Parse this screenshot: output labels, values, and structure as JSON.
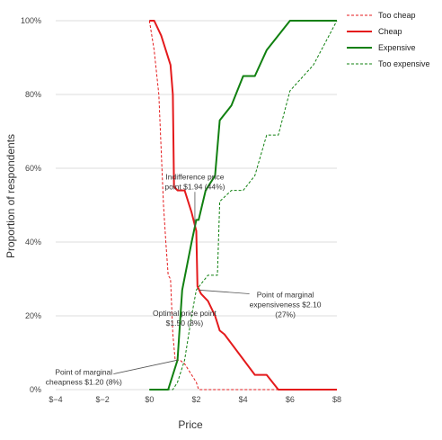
{
  "chart_data": {
    "type": "line",
    "xlabel": "Price",
    "ylabel": "Proportion of respondents",
    "xlim": [
      -4,
      8
    ],
    "ylim": [
      0,
      100
    ],
    "x_ticks": [
      "$−4",
      "$−2",
      "$0",
      "$2",
      "$4",
      "$6",
      "$8"
    ],
    "x_tick_values": [
      -4,
      -2,
      0,
      2,
      4,
      6,
      8
    ],
    "y_ticks": [
      "0%",
      "20%",
      "40%",
      "60%",
      "80%",
      "100%"
    ],
    "y_tick_values": [
      0,
      20,
      40,
      60,
      80,
      100
    ],
    "grid": "horizontal",
    "legend_position": "top-right",
    "series": [
      {
        "name": "Too cheap",
        "color": "#e41a1c",
        "style": "dashed",
        "points": [
          [
            0,
            100
          ],
          [
            0.2,
            92
          ],
          [
            0.4,
            80
          ],
          [
            0.5,
            65
          ],
          [
            0.6,
            50
          ],
          [
            0.7,
            40
          ],
          [
            0.8,
            31
          ],
          [
            0.9,
            30
          ],
          [
            1.0,
            15
          ],
          [
            1.1,
            8
          ],
          [
            1.3,
            8
          ],
          [
            1.5,
            7
          ],
          [
            1.8,
            4
          ],
          [
            2.0,
            2
          ],
          [
            2.1,
            0
          ],
          [
            8,
            0
          ]
        ]
      },
      {
        "name": "Cheap",
        "color": "#e41a1c",
        "style": "solid",
        "points": [
          [
            0,
            100
          ],
          [
            0.2,
            100
          ],
          [
            0.5,
            96
          ],
          [
            0.7,
            92
          ],
          [
            0.9,
            88
          ],
          [
            1.0,
            80
          ],
          [
            1.05,
            55
          ],
          [
            1.2,
            54
          ],
          [
            1.5,
            54
          ],
          [
            1.8,
            48
          ],
          [
            2.0,
            43
          ],
          [
            2.05,
            28
          ],
          [
            2.2,
            26
          ],
          [
            2.5,
            24
          ],
          [
            2.8,
            20
          ],
          [
            3.0,
            16
          ],
          [
            3.2,
            15
          ],
          [
            4.5,
            4
          ],
          [
            5.0,
            4
          ],
          [
            5.5,
            0
          ],
          [
            8,
            0
          ]
        ]
      },
      {
        "name": "Expensive",
        "color": "#108010",
        "style": "solid",
        "points": [
          [
            0,
            0
          ],
          [
            0.8,
            0
          ],
          [
            1.0,
            4
          ],
          [
            1.2,
            8
          ],
          [
            1.4,
            27
          ],
          [
            1.8,
            40
          ],
          [
            2.0,
            46
          ],
          [
            2.1,
            46
          ],
          [
            2.4,
            54
          ],
          [
            2.8,
            58
          ],
          [
            3.0,
            73
          ],
          [
            3.5,
            77
          ],
          [
            4.0,
            85
          ],
          [
            4.5,
            85
          ],
          [
            5.0,
            92
          ],
          [
            6.0,
            100
          ],
          [
            8,
            100
          ]
        ]
      },
      {
        "name": "Too expensive",
        "color": "#108010",
        "style": "dashed",
        "points": [
          [
            0,
            0
          ],
          [
            1.0,
            0
          ],
          [
            1.2,
            2
          ],
          [
            1.5,
            8
          ],
          [
            1.8,
            20
          ],
          [
            2.0,
            27
          ],
          [
            2.5,
            31
          ],
          [
            2.9,
            31
          ],
          [
            3.0,
            51
          ],
          [
            3.5,
            54
          ],
          [
            4.0,
            54
          ],
          [
            4.5,
            58
          ],
          [
            5.0,
            69
          ],
          [
            5.5,
            69
          ],
          [
            6.0,
            81
          ],
          [
            7.0,
            88
          ],
          [
            8.0,
            100
          ]
        ]
      }
    ],
    "annotations": [
      {
        "name": "point-of-marginal-cheapness",
        "lines": [
          "Point of marginal",
          "cheapness $1.20 (8%)"
        ],
        "target": [
          1.2,
          8
        ],
        "label_at": [
          -2.8,
          4
        ],
        "align": "middle"
      },
      {
        "name": "optimal-price-point",
        "lines": [
          "Optimal price point",
          "$1.50 (8%)"
        ],
        "target": [
          1.5,
          8
        ],
        "label_at": [
          1.5,
          20
        ],
        "align": "middle",
        "no_leader": true
      },
      {
        "name": "indifference-price-point",
        "lines": [
          "Indifference price",
          "point $1.94 (44%)"
        ],
        "target": [
          1.94,
          44
        ],
        "label_at": [
          1.94,
          57
        ],
        "align": "middle"
      },
      {
        "name": "point-of-marginal-expensiveness",
        "lines": [
          "Point of marginal",
          "expensiveness $2.10",
          "(27%)"
        ],
        "target": [
          2.1,
          27
        ],
        "label_at": [
          5.8,
          25
        ],
        "align": "middle"
      }
    ]
  }
}
